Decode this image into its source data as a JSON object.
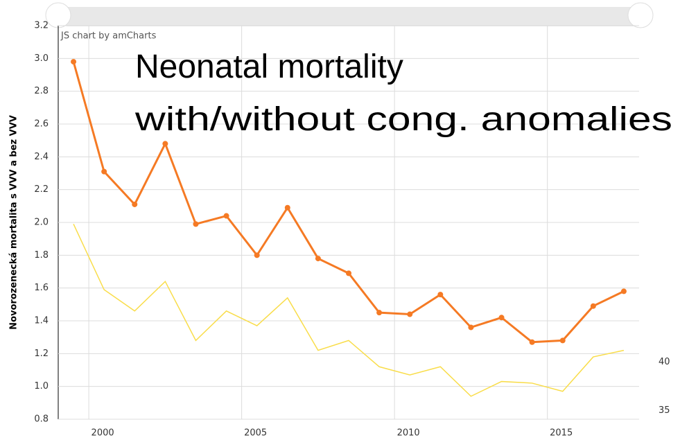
{
  "chart_data": {
    "type": "line",
    "title_lines": [
      "Neonatal mortality",
      "with/without cong. anomalies"
    ],
    "credit": "JS chart by amCharts",
    "y_label": "Novorozenecká mortalita s VVV a bez VVV",
    "x": [
      1999.5,
      2000.5,
      2001.5,
      2002.5,
      2003.5,
      2004.5,
      2005.5,
      2006.5,
      2007.5,
      2008.5,
      2009.5,
      2010.5,
      2011.5,
      2012.5,
      2013.5,
      2014.5,
      2015.5,
      2016.5,
      2017.5
    ],
    "series": [
      {
        "color": "#f57a24",
        "values": [
          2.98,
          2.31,
          2.11,
          2.48,
          1.99,
          2.04,
          1.8,
          2.09,
          1.78,
          1.69,
          1.45,
          1.44,
          1.56,
          1.36,
          1.42,
          1.27,
          1.28,
          1.49,
          1.58
        ]
      },
      {
        "color": "#f9dd4a",
        "values": [
          1.99,
          1.59,
          1.46,
          1.64,
          1.28,
          1.46,
          1.37,
          1.54,
          1.22,
          1.28,
          1.12,
          1.07,
          1.12,
          0.94,
          1.03,
          1.02,
          0.97,
          1.18,
          1.22
        ]
      }
    ],
    "xlim": [
      1999,
      2018
    ],
    "xticks": [
      2000,
      2005,
      2010,
      2015
    ],
    "ylim": [
      0.8,
      3.2
    ],
    "yticks": [
      0.8,
      {
        "value": 1,
        "label": "1.0"
      },
      1.2,
      1.4,
      1.6,
      1.8,
      {
        "value": 2,
        "label": "2.0"
      },
      2.2,
      2.4,
      2.6,
      2.8,
      {
        "value": 3,
        "label": "3.0"
      },
      3.2
    ],
    "y2lim": [
      34.1,
      74.7
    ],
    "y2ticks": [
      35,
      40
    ],
    "grid": true
  }
}
